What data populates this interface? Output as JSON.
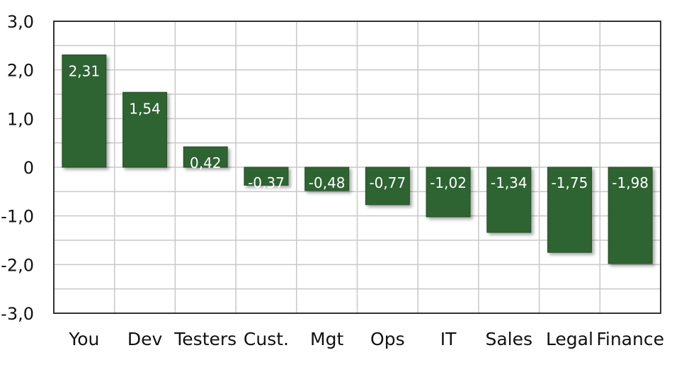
{
  "chart_data": {
    "type": "bar",
    "categories": [
      "You",
      "Dev",
      "Testers",
      "Cust.",
      "Mgt",
      "Ops",
      "IT",
      "Sales",
      "Legal",
      "Finance"
    ],
    "values": [
      2.31,
      1.54,
      0.42,
      -0.37,
      -0.48,
      -0.77,
      -1.02,
      -1.34,
      -1.75,
      -1.98
    ],
    "data_labels": [
      "2,31",
      "1,54",
      "0,42",
      "-0,37",
      "-0,48",
      "-0,77",
      "-1,02",
      "-1,34",
      "-1,75",
      "-1,98"
    ],
    "y_ticks": [
      3,
      2,
      1,
      0,
      -1,
      -2,
      -3
    ],
    "y_tick_labels": [
      "3,0",
      "2,0",
      "1,0",
      "0",
      "-1,0",
      "-2,0",
      "-3,0"
    ],
    "ylim": [
      -3,
      3
    ],
    "grid": true,
    "minor_grid_step": 0.5,
    "bar_color": "#2f6430",
    "grid_color": "#c8c8c8",
    "axis_color": "#333333"
  }
}
